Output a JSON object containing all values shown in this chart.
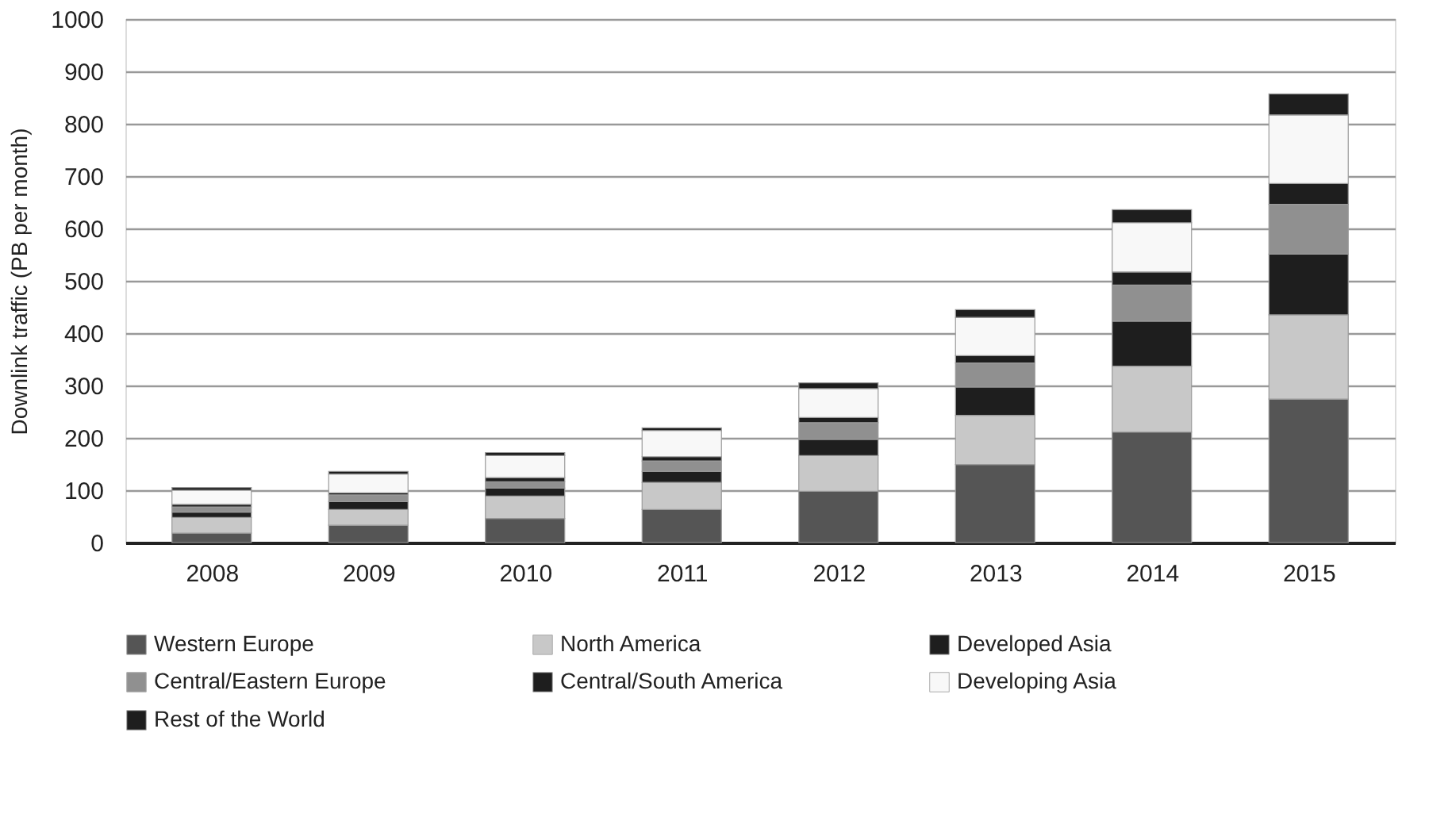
{
  "chart_data": {
    "type": "bar",
    "stacked": true,
    "ylabel": "Downlink traffic (PB per month)",
    "categories": [
      "2008",
      "2009",
      "2010",
      "2011",
      "2012",
      "2013",
      "2014",
      "2015"
    ],
    "series": [
      {
        "name": "Western Europe",
        "color": "#555555",
        "values": [
          18,
          33,
          46,
          63,
          98,
          149,
          211,
          274
        ]
      },
      {
        "name": "North America",
        "color": "#c8c8c8",
        "values": [
          30,
          30,
          43,
          52,
          68,
          94,
          126,
          161
        ]
      },
      {
        "name": "Developed Asia",
        "color": "#1e1e1e",
        "values": [
          10,
          15,
          15,
          21,
          31,
          54,
          86,
          116
        ]
      },
      {
        "name": "Central/Eastern Europe",
        "color": "#909090",
        "values": [
          10,
          13,
          12,
          20,
          32,
          46,
          69,
          95
        ]
      },
      {
        "name": "Central/South America",
        "color": "#1e1e1e",
        "values": [
          5,
          4,
          8,
          8,
          10,
          14,
          25,
          40
        ]
      },
      {
        "name": "Developing Asia",
        "color": "#f8f8f8",
        "values": [
          27,
          36,
          42,
          50,
          55,
          73,
          94,
          131
        ]
      },
      {
        "name": "Rest of the World",
        "color": "#1e1e1e",
        "values": [
          5,
          5,
          6,
          5,
          11,
          15,
          25,
          40
        ]
      }
    ],
    "ylim": [
      0,
      1000
    ],
    "yticks": [
      0,
      100,
      200,
      300,
      400,
      500,
      600,
      700,
      800,
      900,
      1000
    ],
    "grid": "y",
    "legend": "bottom"
  }
}
